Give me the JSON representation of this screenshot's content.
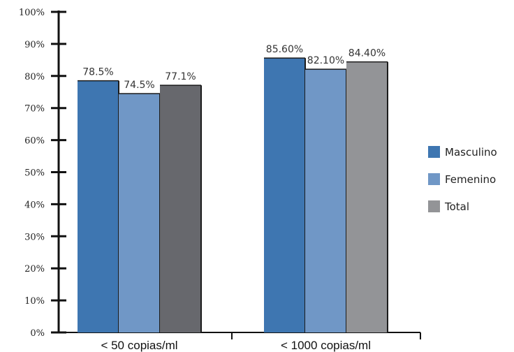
{
  "chart_data": {
    "type": "bar",
    "categories": [
      "< 50 copias/ml",
      "< 1000 copias/ml"
    ],
    "series": [
      {
        "name": "Masculino",
        "values": [
          78.5,
          85.6
        ],
        "labels": [
          "78.5%",
          "85.60%"
        ],
        "colors": [
          "#3e76b1",
          "#3e76b1"
        ]
      },
      {
        "name": "Femenino",
        "values": [
          74.5,
          82.1
        ],
        "labels": [
          "74.5%",
          "82.10%"
        ],
        "colors": [
          "#7097c6",
          "#7097c6"
        ]
      },
      {
        "name": "Total",
        "values": [
          77.1,
          84.4
        ],
        "labels": [
          "77.1%",
          "84.40%"
        ],
        "colors": [
          "#67686d",
          "#939497"
        ]
      }
    ],
    "legend_names": [
      "Masculino",
      "Femenino",
      "Total"
    ],
    "legend_colors": [
      "#3e76b1",
      "#7097c6",
      "#939497"
    ],
    "yticks": [
      "0%",
      "10%",
      "20%",
      "30%",
      "40%",
      "50%",
      "60%",
      "70%",
      "80%",
      "90%",
      "100%"
    ],
    "ylim": [
      0,
      100
    ],
    "grid": false,
    "legend_position": "right"
  }
}
